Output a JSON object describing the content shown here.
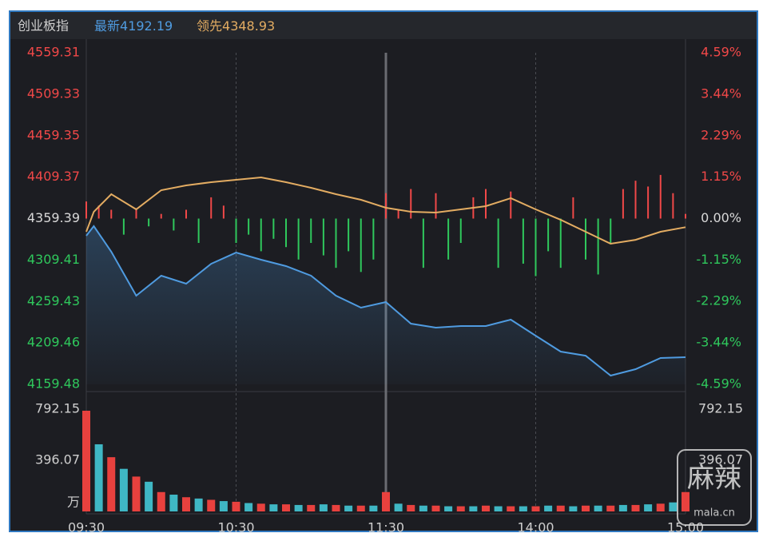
{
  "header": {
    "title": "创业板指",
    "latest_label": "最新",
    "latest": 4192.19,
    "lead_label": "领先",
    "lead": 4348.93
  },
  "watermark": {
    "logo": "麻辣",
    "site": "mala.cn"
  },
  "chart_data": [
    {
      "type": "line",
      "x": [
        0,
        3,
        10,
        20,
        30,
        40,
        50,
        60,
        70,
        80,
        90,
        100,
        110,
        120,
        130,
        140,
        150,
        160,
        170,
        180,
        190,
        200,
        210,
        220,
        230,
        240
      ],
      "xlim": [
        0,
        240
      ],
      "xticks": [
        {
          "value": 0,
          "label": "09:30"
        },
        {
          "value": 60,
          "label": "10:30"
        },
        {
          "value": 120,
          "label": "11:30"
        },
        {
          "value": 180,
          "label": "14:00"
        },
        {
          "value": 240,
          "label": "15:00"
        }
      ],
      "ylim": [
        4159.48,
        4559.31
      ],
      "yticks": [
        4159.48,
        4209.46,
        4259.43,
        4309.41,
        4359.39,
        4409.37,
        4459.35,
        4509.33,
        4559.31
      ],
      "y2lim": [
        -4.59,
        4.59
      ],
      "y2ticks": [
        {
          "value": -4.59,
          "label": "-4.59%"
        },
        {
          "value": -3.44,
          "label": "-3.44%"
        },
        {
          "value": -2.29,
          "label": "-2.29%"
        },
        {
          "value": -1.15,
          "label": "-1.15%"
        },
        {
          "value": 0,
          "label": "0.00%"
        },
        {
          "value": 1.15,
          "label": "1.15%"
        },
        {
          "value": 2.29,
          "label": "2.29%"
        },
        {
          "value": 3.44,
          "label": "3.44%"
        },
        {
          "value": 4.59,
          "label": "4.59%"
        }
      ],
      "up_color": "#f04848",
      "down_color": "#2fc85c",
      "flat_color": "#d8d8d8",
      "series": [
        {
          "name": "最新",
          "color": "#4f9be0",
          "area": true,
          "values": [
            4338.7,
            4350.2,
            4319.4,
            4266.4,
            4290.5,
            4280.9,
            4304.9,
            4318.4,
            4309.8,
            4302.1,
            4290.5,
            4266.4,
            4252.0,
            4258.7,
            4232.7,
            4227.9,
            4229.8,
            4229.8,
            4237.5,
            4218.2,
            4199.0,
            4194.1,
            4170.1,
            4177.8,
            4191.3,
            4192.2
          ]
        },
        {
          "name": "领先",
          "color": "#e3ac62",
          "area": false,
          "values": [
            4343.5,
            4367.6,
            4388.8,
            4370.5,
            4393.6,
            4399.4,
            4403.2,
            4406.1,
            4409.0,
            4403.2,
            4396.5,
            4388.8,
            4382.0,
            4372.4,
            4367.6,
            4366.6,
            4370.5,
            4374.3,
            4384.0,
            4370.5,
            4357.9,
            4343.5,
            4329.0,
            4333.8,
            4343.5,
            4349.0
          ]
        }
      ],
      "bar_series": {
        "x": [
          0,
          5,
          10,
          15,
          20,
          25,
          30,
          35,
          40,
          45,
          50,
          55,
          60,
          65,
          70,
          75,
          80,
          85,
          90,
          95,
          100,
          105,
          110,
          115,
          120,
          125,
          130,
          135,
          140,
          145,
          150,
          155,
          160,
          165,
          170,
          175,
          180,
          185,
          190,
          195,
          200,
          205,
          210,
          215,
          220,
          225,
          230,
          235,
          240
        ],
        "values": [
          4380,
          4375,
          4370,
          4340,
          4372,
          4350,
          4365,
          4345,
          4370,
          4330,
          4385,
          4375,
          4330,
          4340,
          4320,
          4335,
          4325,
          4310,
          4330,
          4315,
          4300,
          4320,
          4295,
          4310,
          4390,
          4370,
          4395,
          4300,
          4390,
          4310,
          4330,
          4385,
          4395,
          4300,
          4392,
          4305,
          4290,
          4320,
          4300,
          4385,
          4310,
          4292,
          4330,
          4395,
          4405,
          4398,
          4412,
          4390,
          4365
        ]
      },
      "xgrid": true
    },
    {
      "type": "bar",
      "x": [
        0,
        5,
        10,
        15,
        20,
        25,
        30,
        35,
        40,
        45,
        50,
        55,
        60,
        65,
        70,
        75,
        80,
        85,
        90,
        95,
        100,
        105,
        110,
        115,
        120,
        125,
        130,
        135,
        140,
        145,
        150,
        155,
        160,
        165,
        170,
        175,
        180,
        185,
        190,
        195,
        200,
        205,
        210,
        215,
        220,
        225,
        230,
        235,
        240
      ],
      "values": [
        780,
        520,
        420,
        330,
        270,
        230,
        150,
        130,
        110,
        100,
        90,
        80,
        75,
        65,
        60,
        55,
        55,
        50,
        50,
        55,
        50,
        45,
        45,
        45,
        150,
        60,
        50,
        45,
        45,
        40,
        40,
        40,
        45,
        40,
        40,
        40,
        40,
        45,
        45,
        40,
        45,
        45,
        45,
        50,
        50,
        55,
        60,
        70,
        150
      ],
      "colors": [
        "#e8413e",
        "#3fb7c4"
      ],
      "xlim": [
        0,
        240
      ],
      "ylim": [
        0,
        885
      ],
      "yticks": [
        396.07,
        792.15
      ],
      "unit": "万"
    }
  ]
}
